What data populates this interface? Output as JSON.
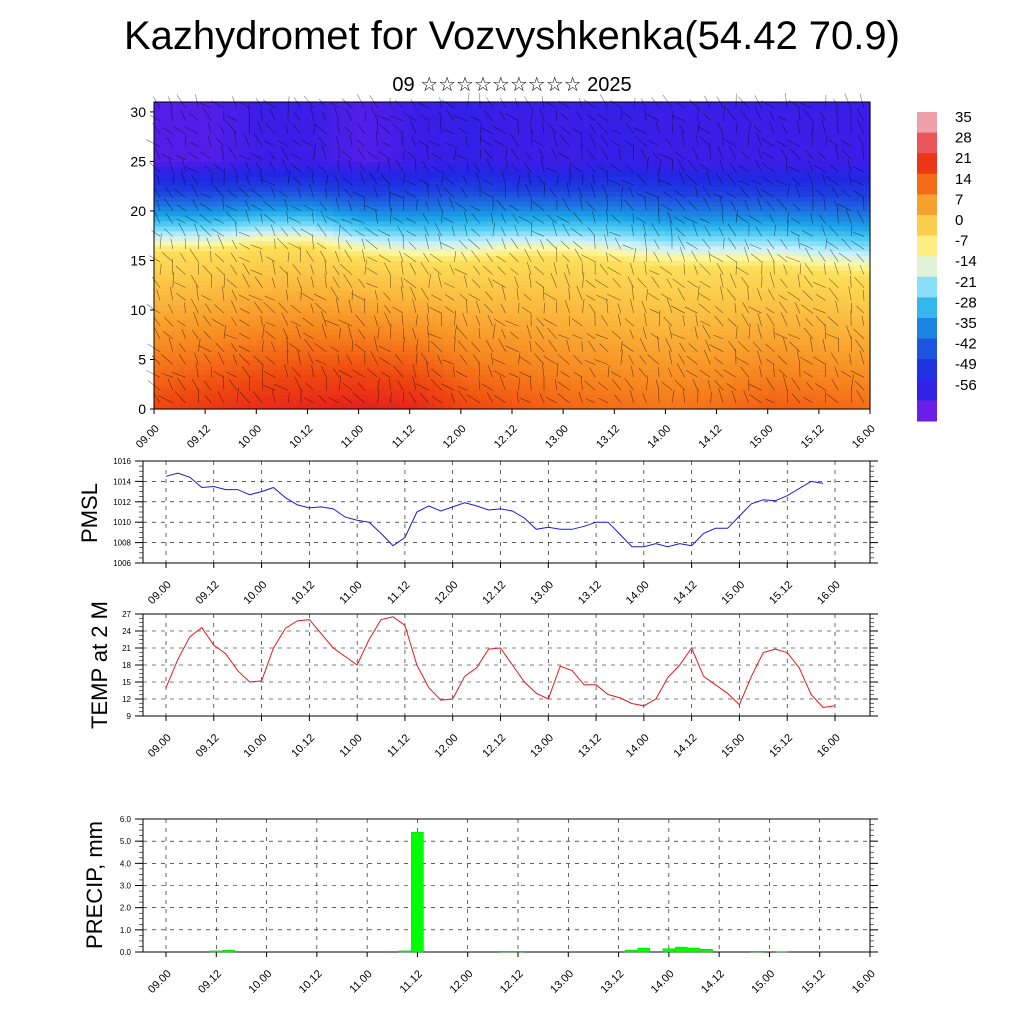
{
  "header": {
    "title": "Kazhydromet for Vozvyshkenka(54.42 70.9)",
    "subtitle": "09 ☆☆☆☆☆☆☆☆☆ 2025"
  },
  "time_labels": [
    "09.00",
    "09.12",
    "10.00",
    "10.12",
    "11.00",
    "11.12",
    "12.00",
    "12.12",
    "13.00",
    "13.12",
    "14.00",
    "14.12",
    "15.00",
    "15.12",
    "16.00"
  ],
  "chart_data": [
    {
      "type": "heatmap",
      "title": "",
      "x": [
        "09.00",
        "09.12",
        "10.00",
        "10.12",
        "11.00",
        "11.12",
        "12.00",
        "12.12",
        "13.00",
        "13.12",
        "14.00",
        "14.12",
        "15.00",
        "15.12",
        "16.00"
      ],
      "ylim": [
        0,
        31
      ],
      "yticks": [
        0,
        5,
        10,
        15,
        20,
        25,
        30
      ],
      "colorbar": {
        "labels": [
          "35",
          "28",
          "21",
          "14",
          "7",
          "0",
          "-7",
          "-14",
          "-21",
          "-28",
          "-35",
          "-42",
          "-49",
          "-56"
        ],
        "colors": [
          "#f0a0a8",
          "#e51e1e",
          "#f04a10",
          "#f7851e",
          "#fbb63c",
          "#fde05a",
          "#fff8a0",
          "#c8f0ff",
          "#5ad2f5",
          "#1aa3e8",
          "#1e6ee0",
          "#1e40e0",
          "#2020e8",
          "#6a1ee8"
        ]
      },
      "overlay": "wind barbs",
      "profile_zero_level_height": [
        16,
        16,
        16.5,
        16.5,
        15.5,
        15,
        15,
        15.5,
        15.5,
        15,
        14.5,
        14.5,
        14.5,
        14,
        13.5
      ],
      "profile_surface_value": [
        22,
        24,
        26,
        27,
        28,
        27,
        22,
        20,
        18,
        17,
        16,
        17,
        19,
        18,
        17
      ],
      "profile_top_value": [
        -58,
        -58,
        -56,
        -56,
        -58,
        -56,
        -54,
        -56,
        -56,
        -54,
        -56,
        -56,
        -56,
        -56,
        -56
      ]
    },
    {
      "type": "line",
      "ylabel": "PMSL",
      "ylim": [
        1006,
        1016
      ],
      "yticks": [
        "1006",
        "1008",
        "1010",
        "1012",
        "1014",
        "1016"
      ],
      "x_hours": [
        0,
        3,
        6,
        9,
        12,
        15,
        18,
        21,
        24,
        27,
        30,
        33,
        36,
        39,
        42,
        45,
        48,
        51,
        54,
        57,
        60,
        63,
        66,
        69,
        72,
        75,
        78,
        81,
        84,
        87,
        90,
        93,
        96,
        99,
        102,
        105,
        108,
        111,
        114,
        117,
        120,
        123,
        126,
        129,
        132,
        135,
        138,
        141,
        144,
        147,
        150,
        153,
        156,
        159,
        162,
        165
      ],
      "values": [
        1014.5,
        1014.8,
        1014.4,
        1013.4,
        1013.5,
        1013.2,
        1013.2,
        1012.7,
        1013.0,
        1013.4,
        1012.4,
        1011.7,
        1011.4,
        1011.5,
        1011.3,
        1010.5,
        1010.2,
        1010.0,
        1008.9,
        1007.7,
        1008.5,
        1011.0,
        1011.6,
        1011.1,
        1011.5,
        1011.9,
        1011.6,
        1011.2,
        1011.3,
        1011.1,
        1010.4,
        1009.3,
        1009.5,
        1009.3,
        1009.3,
        1009.6,
        1010.0,
        1010.0,
        1008.8,
        1007.6,
        1007.6,
        1007.9,
        1007.6,
        1007.9,
        1007.7,
        1008.9,
        1009.4,
        1009.4,
        1010.6,
        1011.8,
        1012.2,
        1012.1,
        1012.6,
        1013.3,
        1014.0,
        1013.8
      ]
    },
    {
      "type": "line",
      "ylabel": "TEMP at 2 M",
      "ylim": [
        9,
        27
      ],
      "yticks": [
        "9",
        "12",
        "15",
        "18",
        "21",
        "24",
        "27"
      ],
      "values": [
        14.0,
        19.0,
        23.0,
        24.6,
        21.5,
        20.0,
        17.0,
        15.0,
        15.2,
        21.0,
        24.5,
        25.8,
        26.0,
        23.5,
        21.0,
        19.5,
        18.0,
        22.5,
        26.0,
        26.5,
        25.0,
        18.0,
        14.0,
        11.8,
        12.0,
        16.0,
        17.5,
        20.8,
        21.0,
        18.0,
        15.0,
        13.0,
        12.0,
        17.8,
        17.0,
        14.5,
        14.5,
        12.8,
        12.2,
        11.2,
        10.8,
        12.0,
        15.8,
        18.0,
        21.0,
        16.0,
        14.5,
        13.0,
        11.0,
        16.0,
        20.2,
        20.8,
        20.2,
        17.5,
        12.8,
        10.5,
        10.8
      ]
    },
    {
      "type": "bar",
      "ylabel": "PRECIP, mm",
      "ylim": [
        0,
        6
      ],
      "yticks": [
        "0.0",
        "1.0",
        "2.0",
        "3.0",
        "4.0",
        "5.0",
        "6.0"
      ],
      "bars": [
        {
          "hour": 12,
          "value": 0.05
        },
        {
          "hour": 15,
          "value": 0.08
        },
        {
          "hour": 57,
          "value": 0.05
        },
        {
          "hour": 60,
          "value": 5.4
        },
        {
          "hour": 81,
          "value": 0.03
        },
        {
          "hour": 84,
          "value": 0.03
        },
        {
          "hour": 111,
          "value": 0.08
        },
        {
          "hour": 114,
          "value": 0.18
        },
        {
          "hour": 120,
          "value": 0.15
        },
        {
          "hour": 123,
          "value": 0.22
        },
        {
          "hour": 126,
          "value": 0.18
        },
        {
          "hour": 129,
          "value": 0.12
        },
        {
          "hour": 141,
          "value": 0.03
        },
        {
          "hour": 147,
          "value": 0.02
        }
      ]
    }
  ]
}
